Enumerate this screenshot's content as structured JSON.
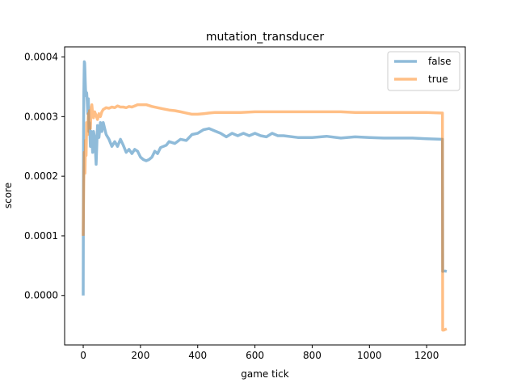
{
  "chart_data": {
    "type": "line",
    "title": "mutation_transducer",
    "xlabel": "game tick",
    "ylabel": "score",
    "xlim": [
      -65,
      1335
    ],
    "ylim": [
      -8.3e-05,
      0.000417
    ],
    "xticks": [
      0,
      200,
      400,
      600,
      800,
      1000,
      1200
    ],
    "xtick_labels": [
      "0",
      "200",
      "400",
      "600",
      "800",
      "1000",
      "1200"
    ],
    "yticks": [
      0.0,
      0.0001,
      0.0002,
      0.0003,
      0.0004
    ],
    "ytick_labels": [
      "0.0000",
      "0.0001",
      "0.0002",
      "0.0003",
      "0.0004"
    ],
    "grid": false,
    "legend": "top-right",
    "series": [
      {
        "name": "false",
        "color": "#1f77b4",
        "x": [
          0,
          1,
          2,
          3,
          4,
          5,
          6,
          7,
          8,
          10,
          12,
          14,
          16,
          18,
          20,
          22,
          25,
          28,
          30,
          33,
          36,
          40,
          45,
          50,
          55,
          60,
          65,
          70,
          80,
          90,
          100,
          110,
          120,
          130,
          140,
          150,
          160,
          170,
          180,
          190,
          200,
          210,
          220,
          230,
          240,
          250,
          260,
          270,
          280,
          290,
          300,
          320,
          340,
          360,
          380,
          400,
          420,
          440,
          460,
          480,
          500,
          520,
          540,
          560,
          580,
          600,
          620,
          640,
          660,
          680,
          700,
          750,
          800,
          850,
          900,
          950,
          1000,
          1050,
          1100,
          1150,
          1200,
          1250,
          1255,
          1256,
          1260,
          1265,
          1270
        ],
        "y": [
          0.0,
          0.000255,
          0.00033,
          0.00037,
          0.000392,
          0.00039,
          0.000375,
          0.00036,
          0.000345,
          0.000335,
          0.00034,
          0.000325,
          0.000305,
          0.00033,
          0.000275,
          0.00029,
          0.00025,
          0.000275,
          0.00026,
          0.00024,
          0.000275,
          0.000265,
          0.00022,
          0.000285,
          0.000265,
          0.00029,
          0.000275,
          0.00029,
          0.00027,
          0.000262,
          0.00025,
          0.000258,
          0.00025,
          0.000262,
          0.000252,
          0.00024,
          0.000245,
          0.000238,
          0.000245,
          0.000242,
          0.000232,
          0.000228,
          0.000226,
          0.000228,
          0.000232,
          0.000242,
          0.000238,
          0.000248,
          0.00025,
          0.000252,
          0.000258,
          0.000255,
          0.000262,
          0.00026,
          0.00027,
          0.000272,
          0.000278,
          0.00028,
          0.000276,
          0.000272,
          0.000266,
          0.000272,
          0.000268,
          0.000272,
          0.000268,
          0.000272,
          0.000268,
          0.000266,
          0.000272,
          0.000268,
          0.000268,
          0.000265,
          0.000265,
          0.000267,
          0.000264,
          0.000266,
          0.000265,
          0.000264,
          0.000264,
          0.000264,
          0.000263,
          0.000262,
          0.000262,
          4.05e-05,
          4.1e-05,
          4.1e-05,
          4.05e-05
        ]
      },
      {
        "name": "true",
        "color": "#ff7f0e",
        "x": [
          0,
          2,
          4,
          6,
          8,
          10,
          12,
          15,
          18,
          20,
          22,
          25,
          28,
          30,
          33,
          36,
          40,
          45,
          50,
          55,
          60,
          65,
          70,
          80,
          90,
          100,
          110,
          120,
          130,
          140,
          150,
          160,
          170,
          180,
          190,
          200,
          220,
          240,
          260,
          280,
          300,
          320,
          340,
          360,
          380,
          400,
          420,
          440,
          460,
          480,
          500,
          550,
          600,
          650,
          700,
          750,
          800,
          850,
          900,
          950,
          1000,
          1050,
          1100,
          1150,
          1200,
          1250,
          1255,
          1256,
          1260,
          1265,
          1270
        ],
        "y": [
          0.0001,
          0.00019,
          0.00024,
          0.000205,
          0.00026,
          0.000235,
          0.00029,
          0.00027,
          0.000305,
          0.00029,
          0.00031,
          0.00028,
          0.000315,
          0.00032,
          0.000305,
          0.000298,
          0.000308,
          0.000302,
          0.000295,
          0.000305,
          0.0003,
          0.000308,
          0.000312,
          0.000315,
          0.000314,
          0.000316,
          0.000315,
          0.000318,
          0.000316,
          0.000316,
          0.000315,
          0.000317,
          0.000316,
          0.000318,
          0.00032,
          0.00032,
          0.00032,
          0.000317,
          0.000315,
          0.000313,
          0.000311,
          0.00031,
          0.000308,
          0.000306,
          0.000304,
          0.000304,
          0.000305,
          0.000306,
          0.000307,
          0.000307,
          0.000307,
          0.000307,
          0.000308,
          0.000308,
          0.000308,
          0.000308,
          0.000308,
          0.000308,
          0.000308,
          0.000307,
          0.000307,
          0.000307,
          0.000307,
          0.000307,
          0.000307,
          0.000306,
          0.000306,
          -5.8e-05,
          -5.8e-05,
          -5.7e-05,
          -5.6e-05
        ]
      }
    ]
  }
}
